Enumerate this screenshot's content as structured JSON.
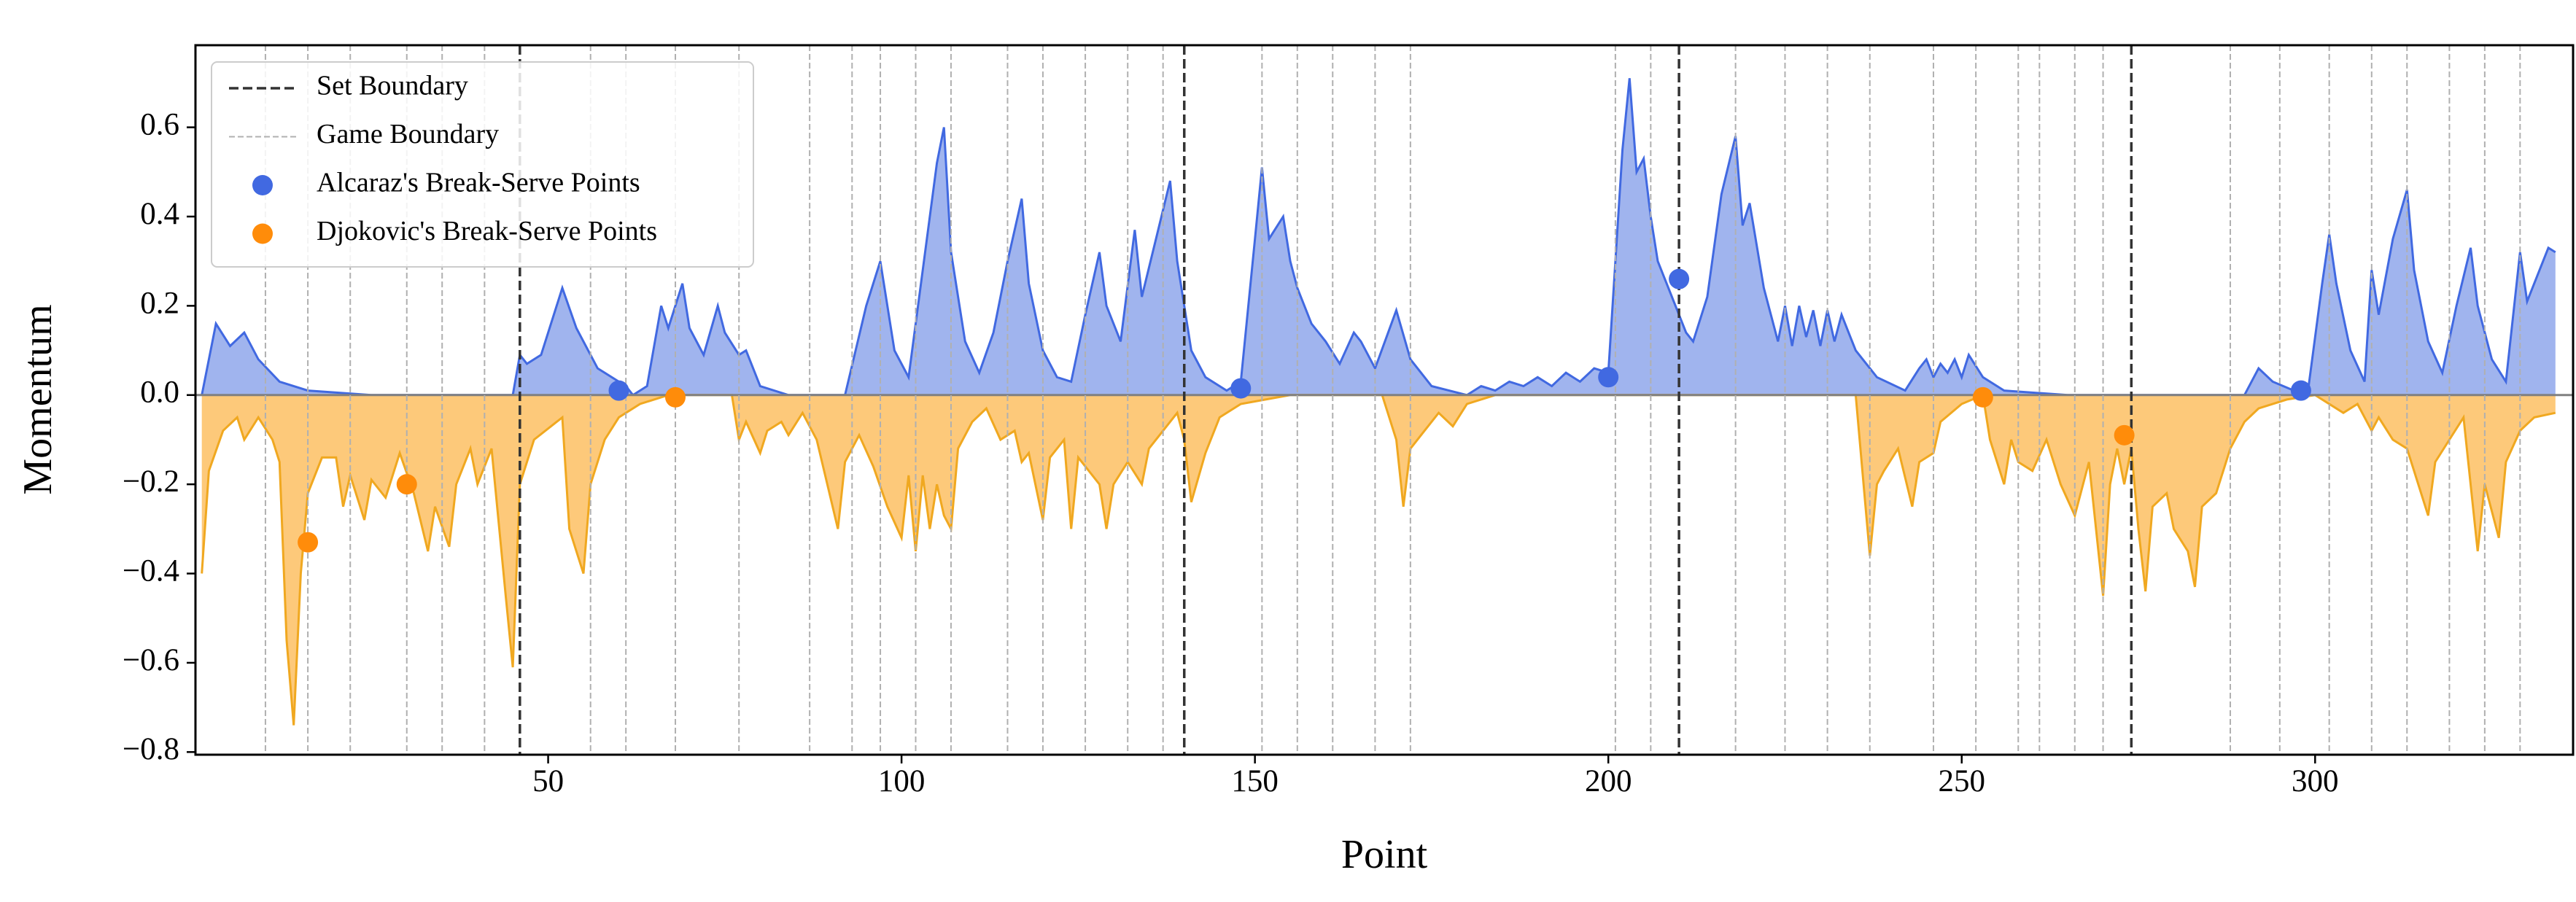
{
  "chart_data": {
    "type": "area",
    "xlabel": "Point",
    "ylabel": "Momentum",
    "xlim": [
      0.1,
      336.5
    ],
    "ylim": [
      -0.806,
      0.784
    ],
    "xticks": [
      50,
      100,
      150,
      200,
      250,
      300
    ],
    "yticks": [
      {
        "value": -0.8,
        "label": "−0.8"
      },
      {
        "value": -0.6,
        "label": "−0.6"
      },
      {
        "value": -0.4,
        "label": "−0.4"
      },
      {
        "value": -0.2,
        "label": "−0.2"
      },
      {
        "value": 0,
        "label": "0.0"
      },
      0.2,
      0.4,
      0.6
    ],
    "legend": "upper left",
    "series": [
      {
        "color": "#4169e1",
        "fill": "#a0b4ee",
        "x": [
          1,
          3,
          5,
          7,
          9,
          12,
          16,
          25,
          45,
          46,
          47,
          49,
          52,
          54,
          57,
          61,
          62,
          64,
          66,
          67,
          69,
          70,
          72,
          74,
          75,
          77,
          78,
          80,
          84,
          92,
          95,
          97,
          99,
          101,
          103,
          105,
          106,
          107,
          109,
          111,
          113,
          115,
          117,
          118,
          120,
          122,
          124,
          126,
          128,
          129,
          131,
          133,
          134,
          136,
          138,
          139,
          141,
          143,
          146,
          148,
          150,
          151,
          152,
          154,
          155,
          156,
          158,
          160,
          162,
          164,
          165,
          167,
          170,
          172,
          175,
          180,
          182,
          184,
          186,
          188,
          190,
          192,
          194,
          196,
          198,
          200,
          201,
          202,
          203,
          204,
          205,
          206,
          207,
          209,
          211,
          212,
          214,
          216,
          218,
          219,
          220,
          222,
          224,
          225,
          226,
          227,
          228,
          229,
          230,
          231,
          232,
          233,
          235,
          238,
          242,
          244,
          245,
          246,
          247,
          248,
          249,
          250,
          251,
          253,
          256,
          265,
          290,
          292,
          294,
          297,
          299,
          301,
          302,
          303,
          305,
          307,
          308,
          309,
          311,
          313,
          314,
          316,
          318,
          320,
          322,
          323,
          325,
          327,
          329,
          330,
          333,
          334
        ],
        "values": [
          0,
          0.16,
          0.11,
          0.14,
          0.08,
          0.03,
          0.01,
          0,
          0,
          0.09,
          0.07,
          0.09,
          0.24,
          0.15,
          0.06,
          0.02,
          0,
          0.02,
          0.2,
          0.15,
          0.25,
          0.15,
          0.09,
          0.2,
          0.14,
          0.09,
          0.1,
          0.02,
          0,
          0,
          0.2,
          0.3,
          0.1,
          0.04,
          0.28,
          0.52,
          0.6,
          0.32,
          0.12,
          0.05,
          0.14,
          0.3,
          0.44,
          0.25,
          0.1,
          0.04,
          0.03,
          0.18,
          0.32,
          0.2,
          0.12,
          0.37,
          0.22,
          0.35,
          0.48,
          0.3,
          0.1,
          0.04,
          0.01,
          0.03,
          0.35,
          0.51,
          0.35,
          0.4,
          0.3,
          0.24,
          0.16,
          0.12,
          0.07,
          0.14,
          0.12,
          0.06,
          0.19,
          0.08,
          0.02,
          0,
          0.02,
          0.01,
          0.03,
          0.02,
          0.04,
          0.02,
          0.05,
          0.03,
          0.06,
          0.05,
          0.3,
          0.55,
          0.71,
          0.5,
          0.53,
          0.4,
          0.3,
          0.22,
          0.14,
          0.12,
          0.22,
          0.45,
          0.58,
          0.38,
          0.43,
          0.24,
          0.12,
          0.2,
          0.11,
          0.2,
          0.13,
          0.19,
          0.11,
          0.19,
          0.12,
          0.18,
          0.1,
          0.04,
          0.01,
          0.06,
          0.08,
          0.04,
          0.07,
          0.05,
          0.08,
          0.04,
          0.09,
          0.04,
          0.01,
          0,
          0,
          0.06,
          0.03,
          0.01,
          0.01,
          0.25,
          0.36,
          0.25,
          0.1,
          0.03,
          0.28,
          0.18,
          0.35,
          0.46,
          0.28,
          0.12,
          0.05,
          0.2,
          0.33,
          0.2,
          0.08,
          0.03,
          0.32,
          0.21,
          0.33,
          0.32
        ]
      },
      {
        "color": "#f0a820",
        "fill": "#fdc97a",
        "x": [
          1,
          2,
          4,
          6,
          7,
          9,
          11,
          12,
          13,
          14,
          15,
          16,
          18,
          20,
          21,
          22,
          24,
          25,
          27,
          29,
          31,
          33,
          34,
          36,
          37,
          39,
          40,
          42,
          44,
          45,
          46,
          48,
          52,
          53,
          55,
          56,
          58,
          60,
          63,
          67,
          76,
          77,
          78,
          80,
          81,
          83,
          84,
          86,
          88,
          91,
          92,
          94,
          96,
          98,
          100,
          101,
          102,
          103,
          104,
          105,
          106,
          107,
          108,
          110,
          112,
          114,
          116,
          117,
          118,
          120,
          121,
          123,
          124,
          125,
          128,
          129,
          130,
          132,
          134,
          135,
          137,
          139,
          140,
          141,
          143,
          145,
          148,
          155,
          168,
          170,
          171,
          172,
          174,
          176,
          178,
          180,
          184,
          235,
          237,
          238,
          239,
          241,
          243,
          244,
          246,
          247,
          250,
          253,
          254,
          256,
          257,
          258,
          260,
          262,
          264,
          266,
          268,
          270,
          271,
          272,
          273,
          274,
          275,
          276,
          277,
          279,
          280,
          282,
          283,
          284,
          286,
          288,
          290,
          292,
          296,
          300,
          304,
          306,
          308,
          309,
          311,
          313,
          316,
          317,
          319,
          321,
          323,
          324,
          326,
          327,
          329,
          331,
          334
        ],
        "values": [
          -0.4,
          -0.17,
          -0.08,
          -0.05,
          -0.1,
          -0.05,
          -0.1,
          -0.15,
          -0.55,
          -0.74,
          -0.4,
          -0.22,
          -0.14,
          -0.14,
          -0.25,
          -0.18,
          -0.28,
          -0.19,
          -0.23,
          -0.13,
          -0.22,
          -0.35,
          -0.25,
          -0.34,
          -0.2,
          -0.12,
          -0.2,
          -0.12,
          -0.45,
          -0.61,
          -0.2,
          -0.1,
          -0.05,
          -0.3,
          -0.4,
          -0.2,
          -0.1,
          -0.05,
          -0.02,
          0,
          0,
          -0.1,
          -0.06,
          -0.13,
          -0.08,
          -0.06,
          -0.09,
          -0.04,
          -0.1,
          -0.3,
          -0.15,
          -0.09,
          -0.16,
          -0.25,
          -0.32,
          -0.18,
          -0.35,
          -0.18,
          -0.3,
          -0.2,
          -0.27,
          -0.3,
          -0.12,
          -0.06,
          -0.03,
          -0.1,
          -0.08,
          -0.15,
          -0.13,
          -0.28,
          -0.14,
          -0.1,
          -0.3,
          -0.14,
          -0.2,
          -0.3,
          -0.2,
          -0.15,
          -0.2,
          -0.12,
          -0.08,
          -0.04,
          -0.1,
          -0.24,
          -0.13,
          -0.05,
          -0.02,
          0,
          0,
          -0.1,
          -0.25,
          -0.12,
          -0.08,
          -0.04,
          -0.07,
          -0.02,
          0,
          0,
          -0.36,
          -0.2,
          -0.17,
          -0.12,
          -0.25,
          -0.15,
          -0.13,
          -0.06,
          -0.02,
          0,
          -0.1,
          -0.2,
          -0.1,
          -0.15,
          -0.17,
          -0.1,
          -0.2,
          -0.27,
          -0.15,
          -0.45,
          -0.2,
          -0.12,
          -0.2,
          -0.12,
          -0.3,
          -0.44,
          -0.25,
          -0.22,
          -0.3,
          -0.35,
          -0.43,
          -0.25,
          -0.22,
          -0.12,
          -0.06,
          -0.03,
          -0.01,
          0,
          -0.04,
          -0.02,
          -0.08,
          -0.05,
          -0.1,
          -0.12,
          -0.27,
          -0.15,
          -0.1,
          -0.05,
          -0.35,
          -0.2,
          -0.32,
          -0.15,
          -0.08,
          -0.05,
          -0.04
        ]
      }
    ],
    "boundaries": [
      {
        "name": "Set Boundary",
        "color": "#333333",
        "x": [
          46,
          140,
          210,
          274
        ]
      },
      {
        "name": "Game Boundary",
        "color": "#b0b0b0",
        "x": [
          10,
          16,
          22,
          30,
          35,
          41,
          56,
          61,
          68,
          77,
          87,
          93,
          97,
          102,
          107,
          115,
          120,
          126,
          132,
          137,
          151,
          156,
          161,
          167,
          172,
          201,
          206,
          218,
          225,
          231,
          237,
          246,
          252,
          258,
          261,
          266,
          270,
          288,
          295,
          302,
          308,
          313,
          319,
          324,
          329
        ]
      }
    ],
    "points": [
      {
        "name": "Alcaraz's Break-Serve Points",
        "color": "#4169e1",
        "x": [
          60,
          148,
          200,
          210,
          298
        ],
        "values": [
          0.01,
          0.015,
          0.04,
          0.26,
          0.01
        ]
      },
      {
        "name": "Djokovic's Break-Serve Points",
        "color": "#ff8c0a",
        "x": [
          16,
          30,
          68,
          253,
          273
        ],
        "values": [
          -0.33,
          -0.2,
          -0.005,
          -0.005,
          -0.09
        ]
      }
    ]
  }
}
